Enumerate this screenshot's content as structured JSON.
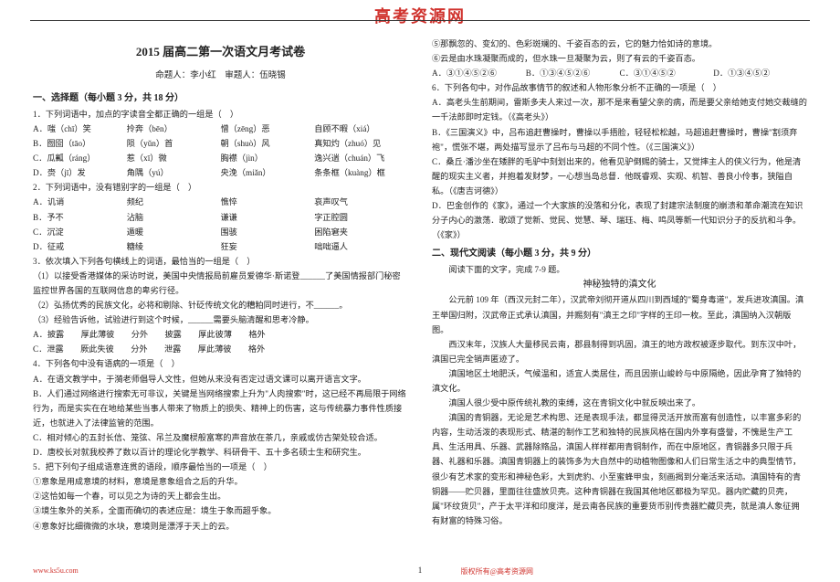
{
  "site_logo": "高考资源网",
  "footer_left": "www.ks5u.com",
  "footer_right": "版权所有@高考资源网",
  "page_number": "1",
  "main_title": "2015 届高二第一次语文月考试卷",
  "subtitle": "命题人：李小红　审题人：伍晓锡",
  "section1_head": "一、选择题（每小题 3 分，共 18 分）",
  "q1_stem": "1．下列词语中，加点的字读音全都正确的一组是（　）",
  "q1A_a": "A．嗤（chī）笑",
  "q1A_b": "拎奔（bēn）",
  "q1A_c": "憎（zēng）恶",
  "q1A_d": "自顾不暇（xiá）",
  "q1B_a": "B．囫囵（tāo）",
  "q1B_b": "陨（yǔn）首",
  "q1B_c": "朝（shuò）风",
  "q1B_d": "真知灼（zhuó）见",
  "q1C_a": "C．瓜瓤（ráng）",
  "q1C_b": "惹（xī）微",
  "q1C_c": "胸襟（jìn）",
  "q1C_d": "逸兴遄（chuán）飞",
  "q1D_a": "D．赍（jī）发",
  "q1D_b": "角隅（yú）",
  "q1D_c": "央浼（miǎn）",
  "q1D_d": "条条框（kuàng）框",
  "q2_stem": "2．下列词语中，没有错别字的一组是（　）",
  "q2A_a": "A．讥诮",
  "q2A_b": "频纪",
  "q2A_c": "憔悴",
  "q2A_d": "哀声叹气",
  "q2B_a": "B．予不",
  "q2B_b": "沾脑",
  "q2B_c": "谦谦",
  "q2B_d": "字正腔圆",
  "q2C_a": "C．沉淀",
  "q2C_b": "遁暖",
  "q2C_c": "围骇",
  "q2C_d": "困陷窘夹",
  "q2D_a": "D．征戒",
  "q2D_b": "糖绫",
  "q2D_c": "狂妄",
  "q2D_d": "咄咄逼人",
  "q3_stem": "3．依次填入下列各句横线上的词语，最恰当的一组是（　）",
  "q3_1": "（1）以接受香港媒体的采访时说，美国中央情报局前雇员爱德华·斯诺登______了美国情报部门秘密监控世界各国的互联网信息的卑劣行径。",
  "q3_2": "（2）弘扬优秀的民族文化，必将和剔除、针砭传统文化的糟粕同时进行，不______。",
  "q3_3": "（3）经验告诉他，试验进行到这个时候，______需要头脑清醒和思考冷静。",
  "q3A": "A．披露　　厚此薄彼　　分外　　披露　　厚此彼薄　　格外",
  "q3C": "C．泄露　　厥此失彼　　分外　　泄露　　厚此薄彼　　格外",
  "q4_stem": "4．下列各句中没有语病的一项是（　）",
  "q4A": "A．在语文教学中，于漪老师倡导人文性，但她从来没有否定过语文课可以离开语言文字。",
  "q4B": "B．人们通过网络进行搜索无可非议，关键是当网络搜索上升为\"人肉搜索\"时，这已经不再局限于网络行为，而是实实在在地给某些当事人带来了物质上的损失、精神上的伤害，这与传统暴力事件性质接近，也就进入了法律监管的范围。",
  "q4C": "C．相对倾心的五封长信、笼弦、吊兰及魔棂般富寒的声音放在茶几，亲戚或仿古架处较合适。",
  "q4D": "D．唐校长对就我校养了数以百计的理论化学教学、科研骨干、五十多名硕士生和研究生。",
  "q5_stem": "5．把下列句子组成语意连贯的语段，顺序最恰当的一项是（　）",
  "q5_1": "①意象是用成意境的材料，意境是意象组合之后的升华。",
  "q5_2": "②这恰如每一个春，可以见之为诗的天上都会生出。",
  "q5_3": "③境生象外的关系，全面而确切的表述应是：境生于象而超乎象。",
  "q5_4": "④意象好比细微微的水块，意境则是漂浮于天上的云。",
  "q_col2_5": "⑤那飘忽的、变幻的、色彩斑斓的、千姿百态的云，它的魅力恰如诗的意境。",
  "q_col2_6": "⑥云是由水珠凝聚而成的，但水珠一旦凝聚为云，则了有云的千姿百态。",
  "q_col2_opts_a": "A．③①④⑤②⑥",
  "q_col2_opts_b": "B．①③④⑤②⑥",
  "q_col2_opts_c": "C．③①④⑤②",
  "q_col2_opts_d": "D．①③④⑤②",
  "q6_stem": "6．下列各句中，对作品故事情节的叙述和人物形象分析不正确的一项是（　）",
  "q6A": "A．高老头生前期间，雷斯多夫人来过一次，那不是来看望父亲的病，而是要父亲给她支付她交裁缝的一千法郎即时定钱。（《高老头》）",
  "q6B": "B．《三国演义》中，吕布追赶曹操时，曹操以手捂脸，轻轻松松越，马超追赶曹操时，曹操\"割须弃袍\"，慌张不堪，两处描写显示了吕布与马超的不同个性。（《三国演义》）",
  "q6C": "C．桑丘·潘沙坐在矮胖的毛驴中刻划出来的，他看见驴倒赐的骑士，又觉摔主人的侠义行为，他是清醒的现实主义者，并抱着发财梦，一心想当岛总督．他既睿观、实观、机智、善良小伶事，狭隘自私。（《唐吉诃德》）",
  "q6D": "D．巴金创作的《家》，通过一个大家族的没落和分化，表现了封建宗法制度的崩溃和革命潮流在知识分子内心的激荡．歌颂了觉新、觉民、觉慧、琴、瑞珏、梅、鸣凤等新一代知识分子的反抗和斗争。（《家》）",
  "section2_head": "二、现代文阅读（每小题 3 分，共 9 分）",
  "section2_intro": "阅读下面的文字，完成 7-9 题。",
  "section2_title": "神秘独特的滇文化",
  "p1": "公元前 109 年（西汉元封二年），汉武帝刘彻开道从四川到西域的\"蜀身毒道\"，发兵进攻滇国。滇王举国归附，汉武帝正式承认滇国，并赐刻有\"滇王之印\"字样的王印一枚。至此，滇国纳入汉朝版图。",
  "p2": "西汉末年，汉族人大量移民云南，郡县制得到巩固，滇王的地方政权被逐步取代。到东汉中叶，滇国已完全销声匿迹了。",
  "p3": "滇国地区土地肥沃，气候温和，适宜人类居住，而且因崇山峻岭与中原隔绝，因此孕育了独特的滇文化。",
  "p4": "滇国人很少受中原传统礼教的束缚，这在青铜文化中就反映出来了。",
  "p5": "滇国的青铜器，无论是艺术构思、还是表现手法，都显得灵活开放而富有创造性，以丰富多彩的内容，生动活泼的表现形式、精湛的制作工艺和独特的民族风格在国内外享有盛誉，不愧是生产工具、生活用具、乐器、武器除赂品，滇国人样样都用青铜制作，而在中原地区，青铜器多只限于兵器、礼器和乐器。滇国青铜器上的装饰多为大自然中的动植物图像和人们日常生活之中的典型情节，很少有艺术家的变形和神秘色彩，大到虎豹、小至蜜蜂甲虫，刻画揭到分毫活来活动。滇国特有的青铜器——贮贝器，里面往往盛放贝壳。这种青铜器在我国其他地区都极为罕见。器内贮藏的贝壳，属\"环纹货贝\"，产于太平洋和印度洋，是云南各民族的重要货币别传贵器贮藏贝壳，就是滇人象征拥有财富的特殊习俗。"
}
